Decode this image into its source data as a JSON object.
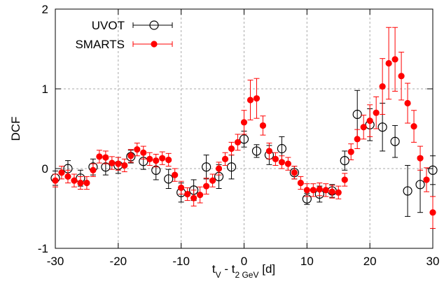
{
  "chart_data": {
    "type": "scatter",
    "x_label": [
      "t",
      "V",
      " - t",
      "2 GeV",
      " [d]"
    ],
    "y_label": "DCF",
    "xlim": [
      -30,
      30
    ],
    "xticks": [
      -30,
      -20,
      -10,
      0,
      10,
      20,
      30
    ],
    "ylim": [
      -1,
      2
    ],
    "yticks": [
      -1,
      0,
      1,
      2
    ],
    "grid": true,
    "legend": "top-left",
    "series": [
      {
        "name": "UVOT",
        "color": "#000000",
        "marker": "open-circle",
        "x": [
          -30,
          -28,
          -26,
          -24,
          -22,
          -20,
          -18,
          -16,
          -14,
          -12,
          -10,
          -8,
          -6,
          -4,
          -2,
          0,
          2,
          4,
          6,
          8,
          10,
          12,
          14,
          16,
          18,
          20,
          22,
          24,
          26,
          28,
          30
        ],
        "values": [
          -0.12,
          0.0,
          -0.12,
          0.02,
          0.02,
          0.04,
          0.15,
          0.09,
          -0.02,
          -0.13,
          -0.3,
          -0.27,
          0.02,
          -0.1,
          0.02,
          0.37,
          0.22,
          0.17,
          0.25,
          -0.05,
          -0.38,
          -0.32,
          -0.28,
          0.1,
          0.68,
          0.55,
          0.52,
          0.34,
          -0.28,
          -0.2,
          -0.02
        ],
        "errors": [
          0.09,
          0.1,
          0.1,
          0.1,
          0.1,
          0.1,
          0.08,
          0.1,
          0.12,
          0.12,
          0.12,
          0.13,
          0.15,
          0.15,
          0.15,
          0.1,
          0.08,
          0.12,
          0.15,
          0.08,
          0.07,
          0.1,
          0.08,
          0.12,
          0.3,
          0.2,
          0.3,
          0.2,
          0.32,
          0.35,
          0.18
        ]
      },
      {
        "name": "SMARTS",
        "color": "#ff0000",
        "marker": "filled-circle",
        "x": [
          -30,
          -29,
          -28,
          -27,
          -26,
          -25,
          -24,
          -23,
          -22,
          -21,
          -20,
          -19,
          -18,
          -17,
          -16,
          -15,
          -14,
          -13,
          -12,
          -11,
          -10,
          -9,
          -8,
          -7,
          -6,
          -5,
          -4,
          -3,
          -2,
          -1,
          0,
          1,
          2,
          3,
          4,
          5,
          6,
          7,
          8,
          9,
          10,
          11,
          12,
          13,
          14,
          15,
          16,
          17,
          18,
          19,
          20,
          21,
          22,
          23,
          24,
          25,
          26,
          27,
          28,
          29,
          30
        ],
        "values": [
          -0.15,
          -0.05,
          -0.1,
          -0.15,
          -0.18,
          -0.18,
          -0.02,
          0.15,
          0.14,
          0.07,
          0.06,
          0.04,
          0.16,
          0.24,
          0.2,
          0.12,
          0.1,
          0.13,
          0.11,
          -0.08,
          -0.24,
          -0.32,
          -0.37,
          -0.33,
          -0.22,
          -0.15,
          0.0,
          0.12,
          0.25,
          0.33,
          0.58,
          0.86,
          0.88,
          0.54,
          0.22,
          0.12,
          0.08,
          0.06,
          -0.05,
          -0.18,
          -0.27,
          -0.27,
          -0.26,
          -0.27,
          -0.29,
          -0.3,
          -0.14,
          0.21,
          0.37,
          0.52,
          0.6,
          0.7,
          1.03,
          1.32,
          1.37,
          1.16,
          0.82,
          0.53,
          0.13,
          -0.14,
          -0.55
        ],
        "errors": [
          0.08,
          0.08,
          0.08,
          0.08,
          0.08,
          0.08,
          0.08,
          0.08,
          0.08,
          0.08,
          0.08,
          0.08,
          0.08,
          0.08,
          0.08,
          0.08,
          0.08,
          0.08,
          0.08,
          0.08,
          0.08,
          0.08,
          0.1,
          0.1,
          0.1,
          0.08,
          0.08,
          0.08,
          0.08,
          0.1,
          0.15,
          0.25,
          0.25,
          0.12,
          0.1,
          0.08,
          0.08,
          0.08,
          0.08,
          0.08,
          0.08,
          0.08,
          0.08,
          0.08,
          0.08,
          0.08,
          0.08,
          0.1,
          0.12,
          0.15,
          0.2,
          0.2,
          0.35,
          0.45,
          0.4,
          0.3,
          0.25,
          0.2,
          0.15,
          0.15,
          0.2
        ]
      }
    ]
  }
}
